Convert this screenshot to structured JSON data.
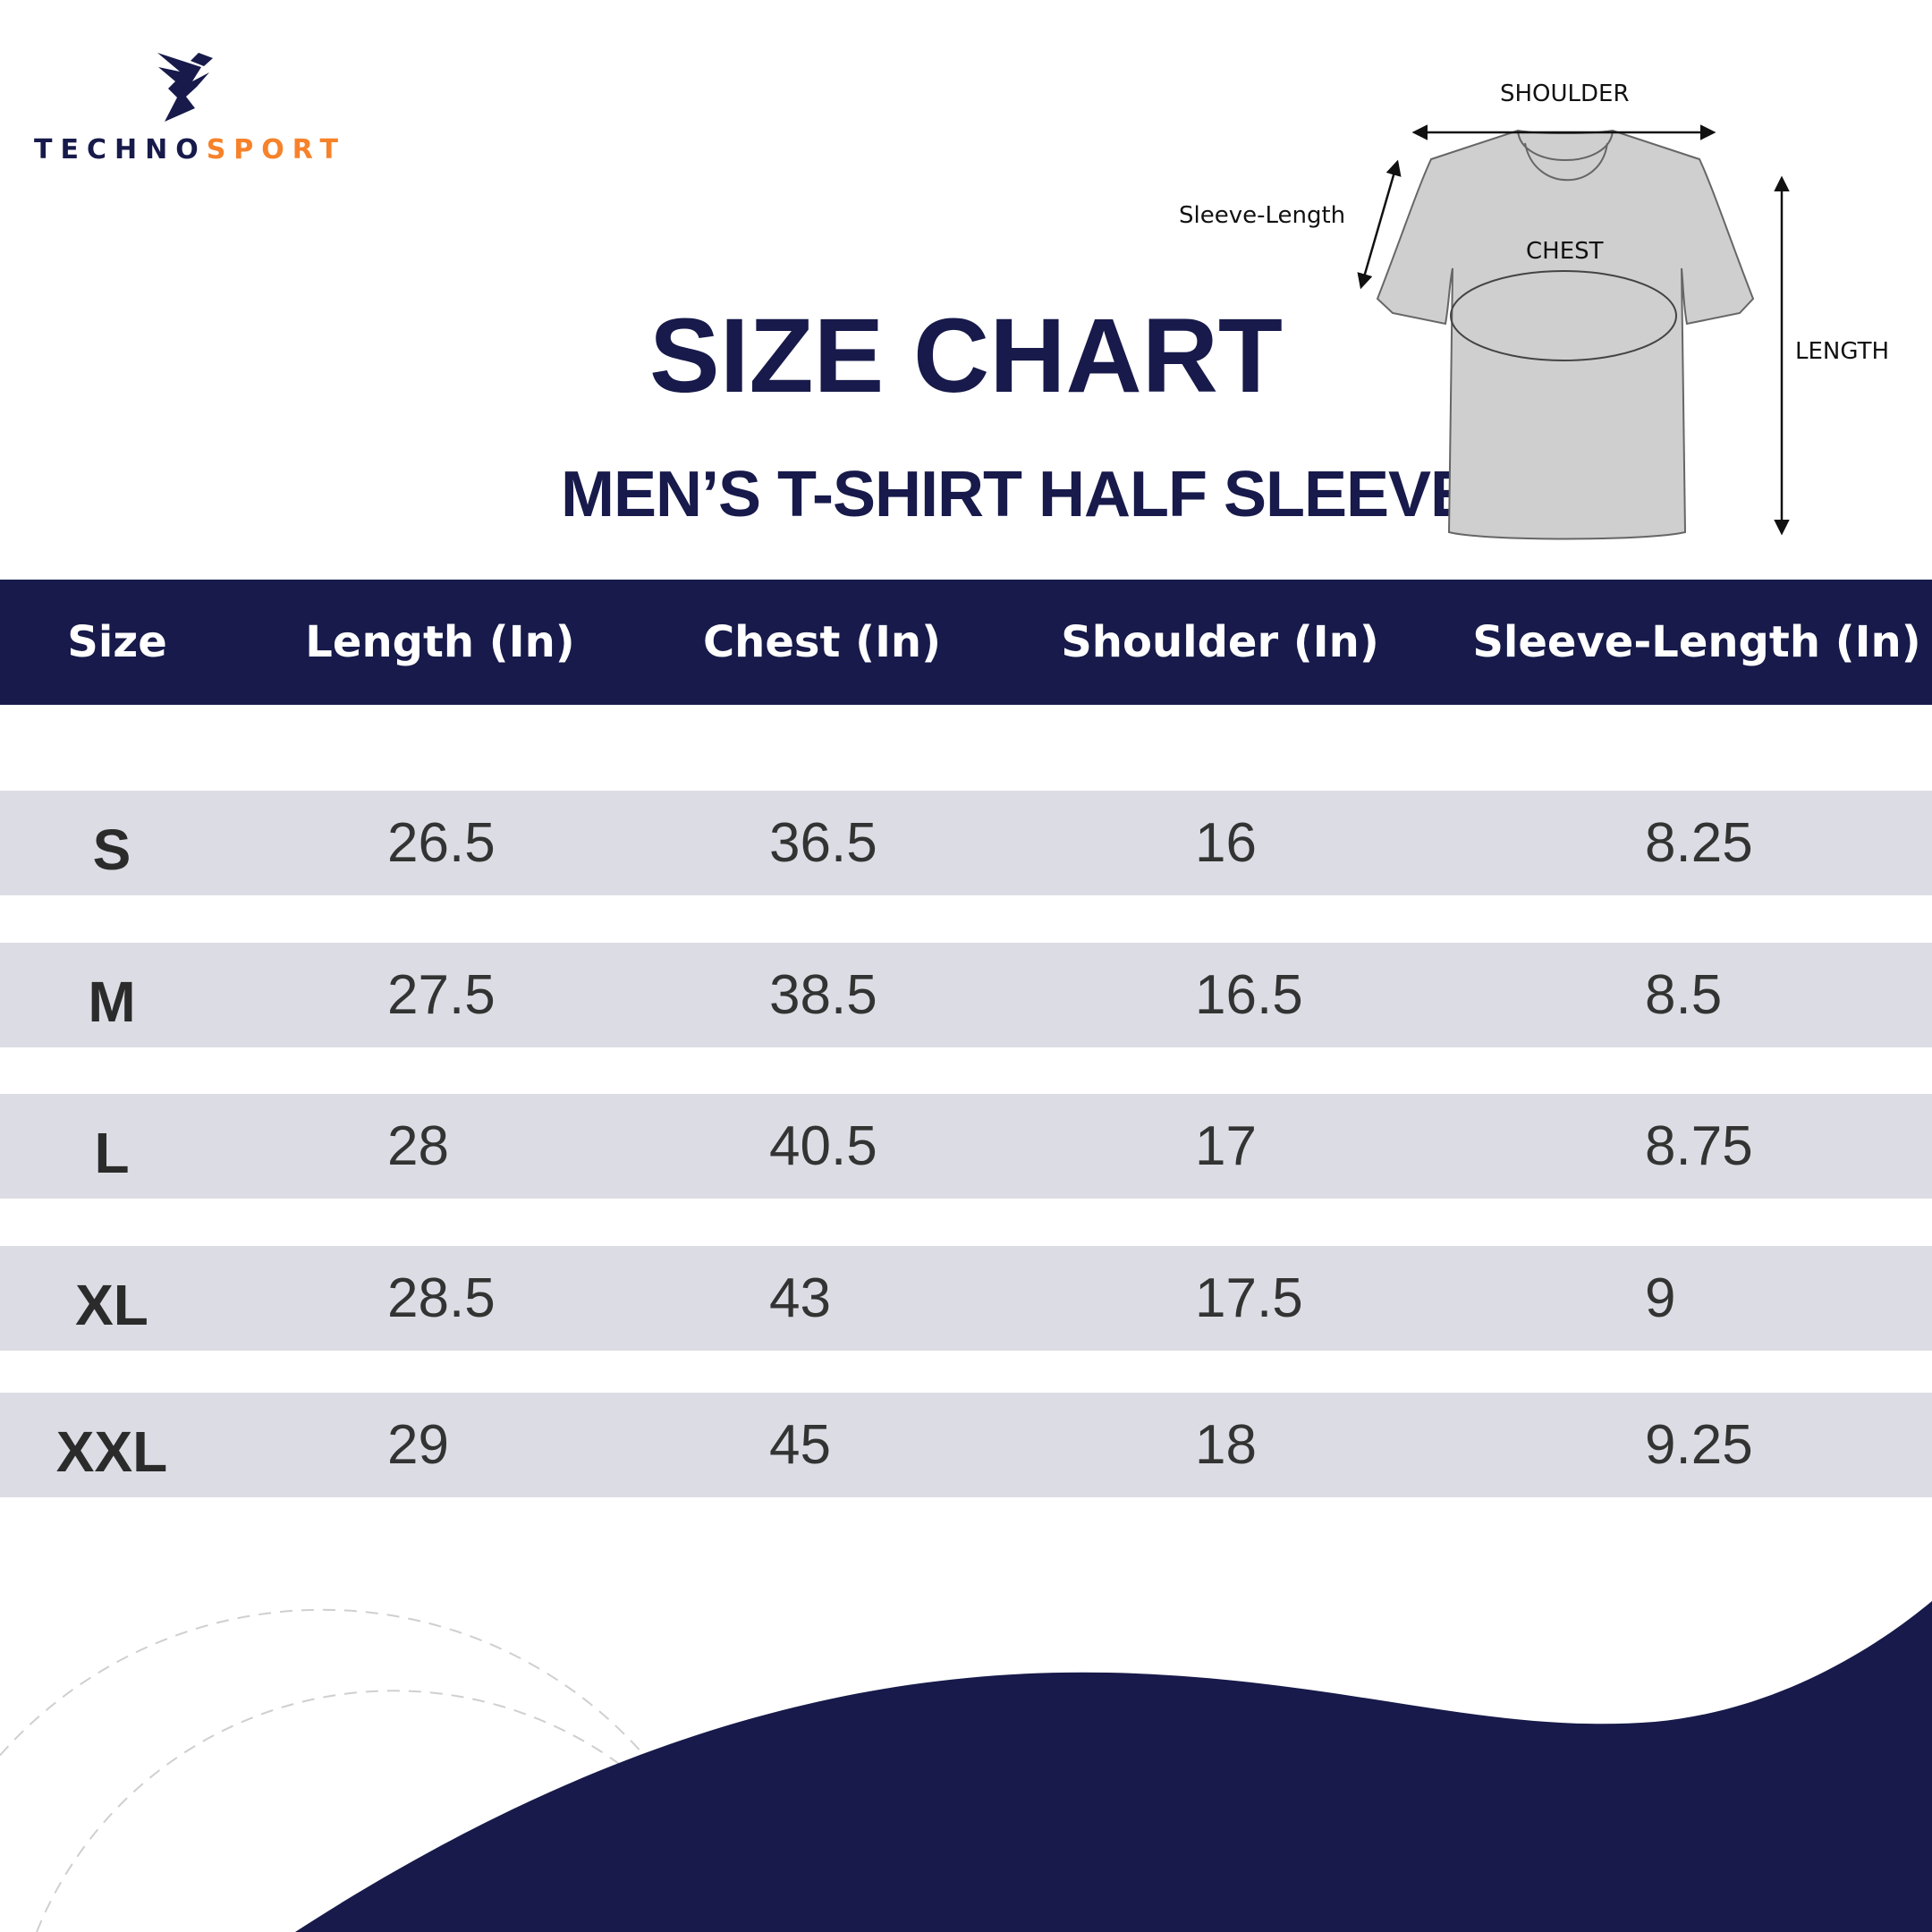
{
  "brand": {
    "name_part1": "TECHNO",
    "name_part2": "SPORT",
    "colors": {
      "navy": "#171a4a",
      "orange": "#f7822a"
    }
  },
  "title": "SIZE CHART",
  "subtitle": "MEN’S T-SHIRT HALF SLEEVE",
  "diagram": {
    "shoulder": "SHOULDER",
    "sleeve_length": "Sleeve-Length",
    "chest": "CHEST",
    "length": "LENGTH"
  },
  "table": {
    "headers": [
      "Size",
      "Length (In)",
      "Chest (In)",
      "Shoulder (In)",
      "Sleeve-Length (In)"
    ],
    "rows": [
      [
        "S",
        "26.5",
        "36.5",
        "16",
        "8.25"
      ],
      [
        "M",
        "27.5",
        "38.5",
        "16.5",
        "8.5"
      ],
      [
        "L",
        "28",
        "40.5",
        "17",
        "8.75"
      ],
      [
        "XL",
        "28.5",
        "43",
        "17.5",
        "9"
      ],
      [
        "XXL",
        "29",
        "45",
        "18",
        "9.25"
      ]
    ]
  },
  "colors": {
    "header_bg": "#171a4a",
    "row_bg": "#dcdce4",
    "wave": "#171a4a"
  }
}
